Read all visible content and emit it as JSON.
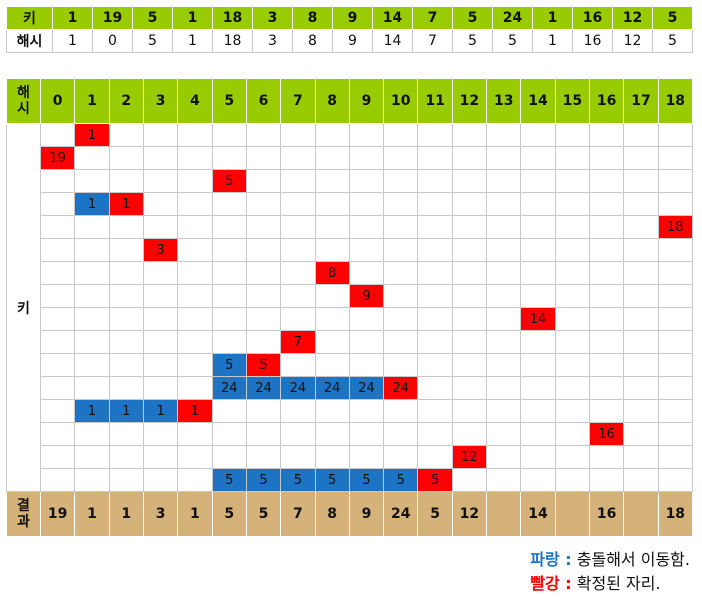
{
  "key_row_label": "키",
  "hash_row_label": "해시",
  "keys": [
    "1",
    "19",
    "5",
    "1",
    "18",
    "3",
    "8",
    "9",
    "14",
    "7",
    "5",
    "24",
    "1",
    "16",
    "12",
    "5"
  ],
  "hashes": [
    "1",
    "0",
    "5",
    "1",
    "18",
    "3",
    "8",
    "9",
    "14",
    "7",
    "5",
    "5",
    "1",
    "16",
    "12",
    "5"
  ],
  "table_header_label": "해시",
  "slots": [
    "0",
    "1",
    "2",
    "3",
    "4",
    "5",
    "6",
    "7",
    "8",
    "9",
    "10",
    "11",
    "12",
    "13",
    "14",
    "15",
    "16",
    "17",
    "18"
  ],
  "key_column_label": "키",
  "result_label": "결과",
  "steps": [
    {
      "moved": [],
      "placed": {
        "slot": 1,
        "value": "1"
      }
    },
    {
      "moved": [],
      "placed": {
        "slot": 0,
        "value": "19"
      }
    },
    {
      "moved": [],
      "placed": {
        "slot": 5,
        "value": "5"
      }
    },
    {
      "moved": [
        {
          "slot": 1,
          "value": "1"
        }
      ],
      "placed": {
        "slot": 2,
        "value": "1"
      }
    },
    {
      "moved": [],
      "placed": {
        "slot": 18,
        "value": "18"
      }
    },
    {
      "moved": [],
      "placed": {
        "slot": 3,
        "value": "3"
      }
    },
    {
      "moved": [],
      "placed": {
        "slot": 8,
        "value": "8"
      }
    },
    {
      "moved": [],
      "placed": {
        "slot": 9,
        "value": "9"
      }
    },
    {
      "moved": [],
      "placed": {
        "slot": 14,
        "value": "14"
      }
    },
    {
      "moved": [],
      "placed": {
        "slot": 7,
        "value": "7"
      }
    },
    {
      "moved": [
        {
          "slot": 5,
          "value": "5"
        }
      ],
      "placed": {
        "slot": 6,
        "value": "5"
      }
    },
    {
      "moved": [
        {
          "slot": 5,
          "value": "24"
        },
        {
          "slot": 6,
          "value": "24"
        },
        {
          "slot": 7,
          "value": "24"
        },
        {
          "slot": 8,
          "value": "24"
        },
        {
          "slot": 9,
          "value": "24"
        }
      ],
      "placed": {
        "slot": 10,
        "value": "24"
      }
    },
    {
      "moved": [
        {
          "slot": 1,
          "value": "1"
        },
        {
          "slot": 2,
          "value": "1"
        },
        {
          "slot": 3,
          "value": "1"
        }
      ],
      "placed": {
        "slot": 4,
        "value": "1"
      }
    },
    {
      "moved": [],
      "placed": {
        "slot": 16,
        "value": "16"
      }
    },
    {
      "moved": [],
      "placed": {
        "slot": 12,
        "value": "12"
      }
    },
    {
      "moved": [
        {
          "slot": 5,
          "value": "5"
        },
        {
          "slot": 6,
          "value": "5"
        },
        {
          "slot": 7,
          "value": "5"
        },
        {
          "slot": 8,
          "value": "5"
        },
        {
          "slot": 9,
          "value": "5"
        },
        {
          "slot": 10,
          "value": "5"
        }
      ],
      "placed": {
        "slot": 11,
        "value": "5"
      }
    }
  ],
  "result": [
    "19",
    "1",
    "1",
    "3",
    "1",
    "5",
    "5",
    "7",
    "8",
    "9",
    "24",
    "5",
    "12",
    "",
    "14",
    "",
    "16",
    "",
    "18"
  ],
  "legend": {
    "blue_label": "파랑 :",
    "blue_text": " 충돌해서 이동함.",
    "red_label": "빨강 :",
    "red_text": " 확정된 자리."
  },
  "colors": {
    "moved": "#1e74c4",
    "placed": "#ff0000",
    "header": "#99cc00",
    "result": "#d4b27a"
  }
}
